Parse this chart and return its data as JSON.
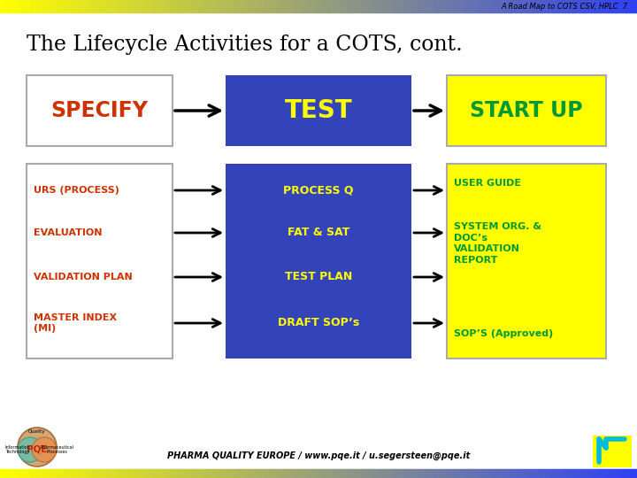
{
  "title": "The Lifecycle Activities for a COTS, cont.",
  "header_text": "A Road Map to COTS CSV, HPLC  7",
  "footer_text": "PHARMA QUALITY EUROPE / www.pqe.it / u.segersteen@pqe.it",
  "bg_color": "#ffffff",
  "box1_label": "SPECIFY",
  "box1_bg": "#ffffff",
  "box1_text_color": "#cc3300",
  "box2_label": "TEST",
  "box2_bg": "#3344bb",
  "box2_text_color": "#ffff00",
  "box3_label": "START UP",
  "box3_bg": "#ffff00",
  "box3_text_color": "#009933",
  "left_items": [
    "URS (PROCESS)",
    "EVALUATION",
    "VALIDATION PLAN",
    "MASTER INDEX\n(MI)"
  ],
  "left_text_color": "#cc3300",
  "mid_items": [
    "PROCESS Q",
    "FAT & SAT",
    "TEST PLAN",
    "DRAFT SOP’s"
  ],
  "mid_text_color": "#ffff00",
  "mid_bg": "#3344bb",
  "right_items_top": "USER GUIDE",
  "right_items_mid": "SYSTEM ORG. &\nDOC’s\nVALIDATION\nREPORT",
  "right_items_bot": "SOP’S (Approved)",
  "right_text_color": "#009933",
  "right_bg": "#ffff00",
  "arrow_color": "#000000",
  "border_color": "#aaaaaa"
}
